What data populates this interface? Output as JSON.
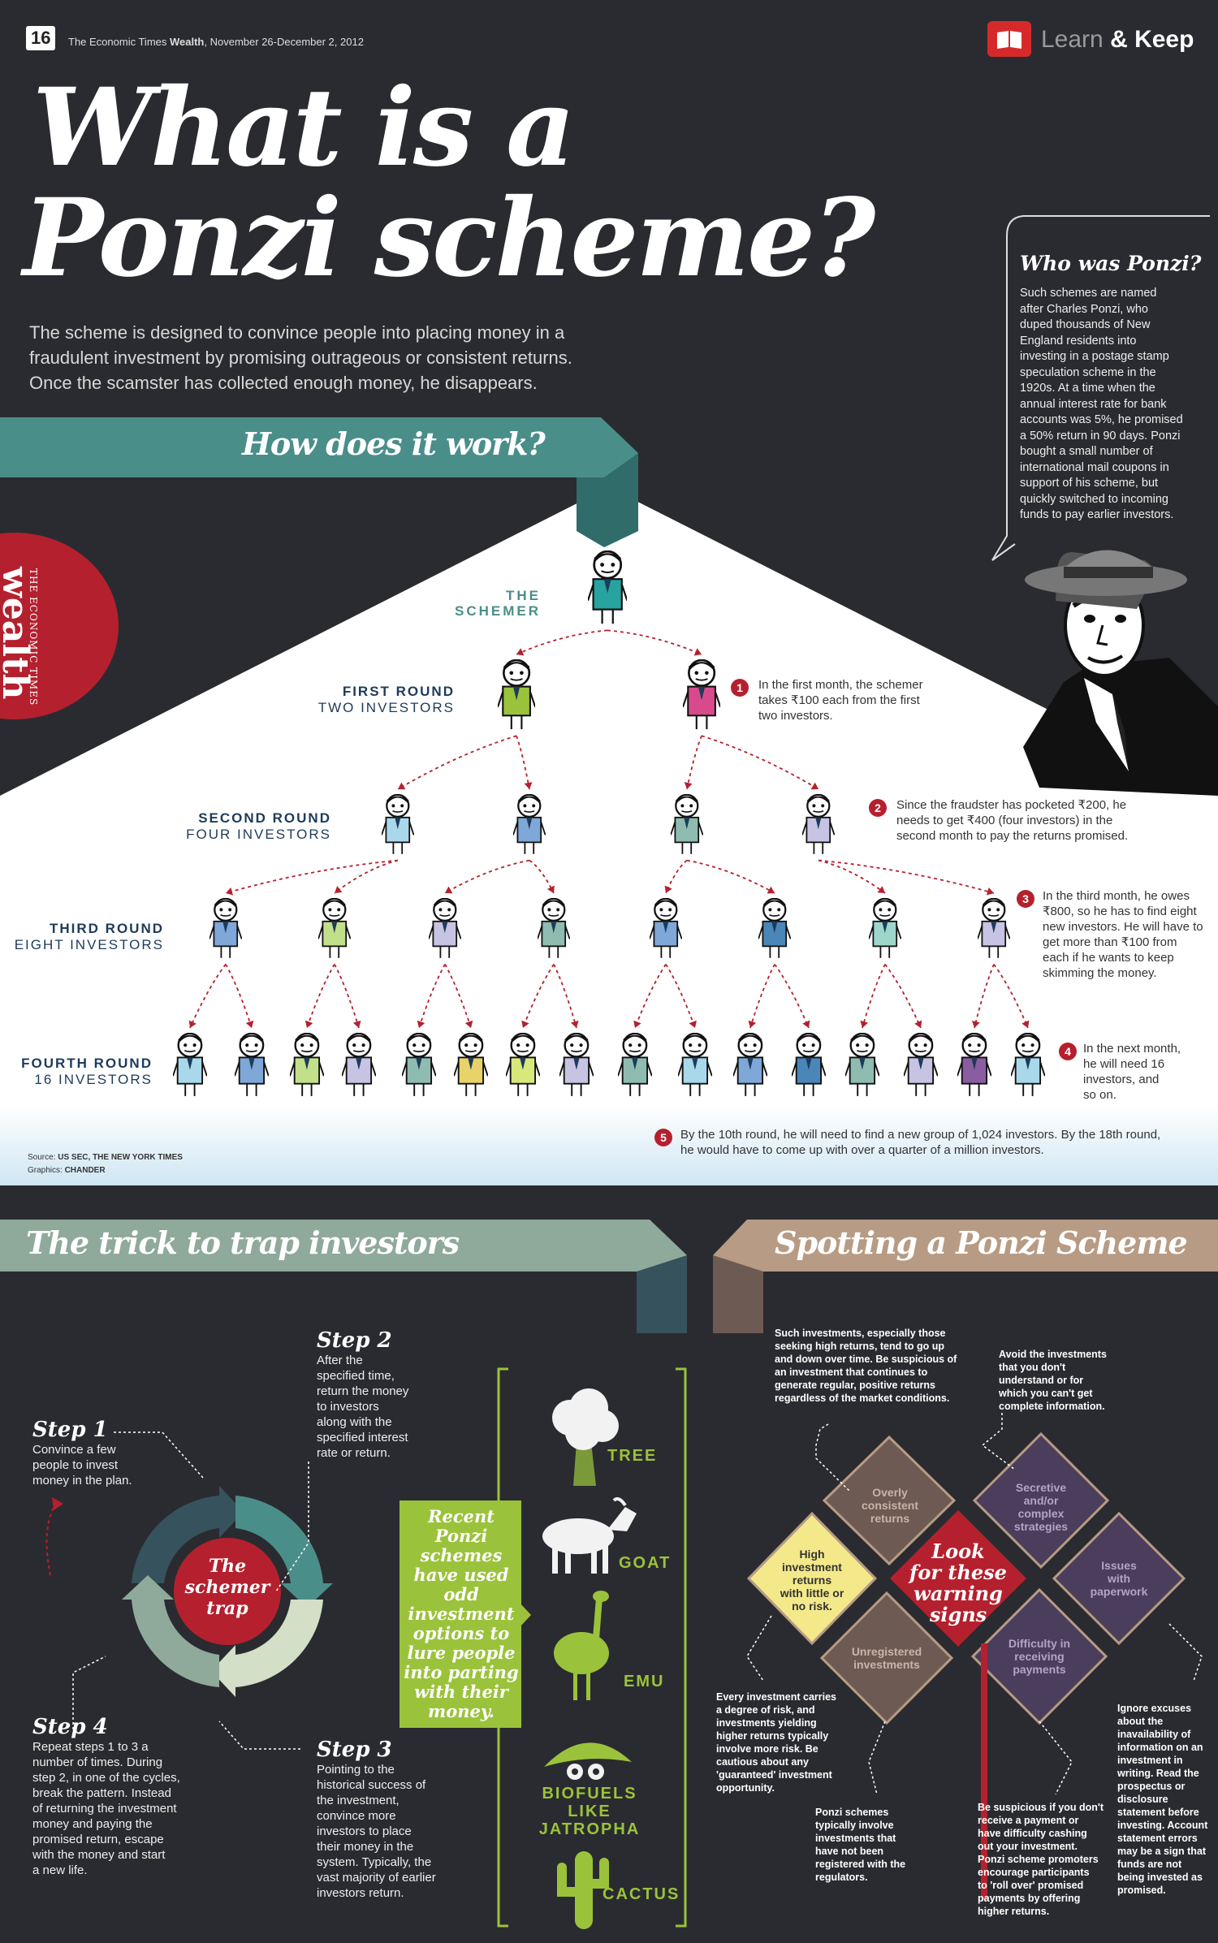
{
  "header": {
    "page_number": "16",
    "publication_prefix": "The Economic Times ",
    "publication_bold": "Wealth",
    "dates": ", November 26-December 2, 2012",
    "brand_learn": "Learn",
    "brand_keep": "& Keep"
  },
  "hero": {
    "title_line1": "What is a",
    "title_line2": "Ponzi scheme?",
    "intro_lines": [
      "The scheme is designed to convince people into placing money in a",
      "fraudulent investment by promising outrageous or consistent returns.",
      "Once the scamster has collected enough money, he disappears."
    ]
  },
  "who": {
    "title": "Who was Ponzi?",
    "lines": [
      "Such schemes are named",
      "after Charles Ponzi, who",
      "duped thousands of New",
      "England residents into",
      "investing in a postage stamp",
      "speculation scheme in the",
      "1920s. At a time when the",
      "annual interest rate for bank",
      "accounts was 5%, he promised",
      "a 50% return in 90 days. Ponzi",
      "bought a small number of",
      "international mail coupons in",
      "support of his scheme, but",
      "quickly switched to incoming",
      "funds to pay earlier investors."
    ]
  },
  "side_badge": {
    "small": "THE ECONOMIC TIMES",
    "big": "wealth"
  },
  "how": {
    "title": "How does it work?",
    "schemer_label": [
      "THE",
      "SCHEMER"
    ],
    "rounds": [
      {
        "title": "FIRST ROUND",
        "sub": "TWO INVESTORS"
      },
      {
        "title": "SECOND ROUND",
        "sub": "FOUR INVESTORS"
      },
      {
        "title": "THIRD ROUND",
        "sub": "EIGHT INVESTORS"
      },
      {
        "title": "FOURTH ROUND",
        "sub": "16 INVESTORS"
      }
    ],
    "notes": [
      {
        "num": "1",
        "lines": [
          "In the first month, the schemer",
          "takes ₹100 each from the first",
          "two investors."
        ]
      },
      {
        "num": "2",
        "lines": [
          "Since the fraudster has pocketed ₹200, he",
          "needs to get ₹400 (four investors) in the",
          "second month to pay the returns promised."
        ]
      },
      {
        "num": "3",
        "lines": [
          "In the third month, he owes",
          "₹800, so he has to find eight",
          "new investors. He will have to",
          "get more than ₹100 from",
          "each if he wants to keep",
          "skimming the money."
        ]
      },
      {
        "num": "4",
        "lines": [
          "In the next month,",
          "he will need 16",
          "investors, and",
          "so on."
        ]
      },
      {
        "num": "5",
        "lines": [
          "By the 10th round, he will need to find a new group of 1,024 investors. By the 18th round,",
          "he would have to come up with over a quarter of a million investors."
        ]
      }
    ],
    "source_label": "Source: ",
    "source_value": "US SEC, THE NEW YORK TIMES",
    "graphics_label": "Graphics: ",
    "graphics_value": "CHANDER"
  },
  "trick": {
    "title": "The trick to trap investors",
    "center": [
      "The",
      "schemer",
      "trap"
    ],
    "steps": [
      {
        "title": "Step 1",
        "lines": [
          "Convince a few",
          "people to invest",
          "money in the plan."
        ]
      },
      {
        "title": "Step 2",
        "lines": [
          "After the",
          "specified time,",
          "return the money",
          "to investors",
          "along with the",
          "specified interest",
          "rate or return."
        ]
      },
      {
        "title": "Step 3",
        "lines": [
          "Pointing to the",
          "historical success of",
          "the investment,",
          "convince more",
          "investors to place",
          "their money in the",
          "system. Typically, the",
          "vast majority of earlier",
          "investors return."
        ]
      },
      {
        "title": "Step 4",
        "lines": [
          "Repeat steps 1 to 3 a",
          "number of times. During",
          "step 2, in one of the cycles,",
          "break the pattern. Instead",
          "of returning the investment",
          "money and paying the",
          "promised return, escape",
          "with the money and start",
          "a new life."
        ]
      }
    ],
    "recent": [
      "Recent",
      "Ponzi",
      "schemes",
      "have used",
      "odd",
      "investment",
      "options to",
      "lure people",
      "into parting",
      "with their",
      "money."
    ],
    "items": [
      "TREE",
      "GOAT",
      "EMU",
      "BIOFUELS LIKE",
      "JATROPHA",
      "CACTUS"
    ]
  },
  "spot": {
    "title": "Spotting a Ponzi Scheme",
    "center": [
      "Look",
      "for these",
      "warning",
      "signs"
    ],
    "signs": {
      "overly": [
        "Overly",
        "consistent",
        "returns"
      ],
      "secretive": [
        "Secretive",
        "and/or",
        "complex",
        "strategies"
      ],
      "high": [
        "High",
        "investment",
        "returns",
        "with little or",
        "no risk."
      ],
      "issues": [
        "Issues",
        "with",
        "paperwork"
      ],
      "unregistered": [
        "Unregistered",
        "investments"
      ],
      "difficulty": [
        "Difficulty in",
        "receiving",
        "payments"
      ]
    },
    "notes": {
      "top_left": [
        "Such investments, especially those",
        "seeking high returns, tend to go up",
        "and down over time. Be suspicious of",
        "an investment that continues to",
        "generate regular, positive returns",
        "regardless of the market conditions."
      ],
      "top_right": [
        "Avoid the investments",
        "that you don't",
        "understand or for",
        "which you can't get",
        "complete information."
      ],
      "mid_left": [
        "Every investment carries",
        "a degree of risk, and",
        "investments yielding",
        "higher returns typically",
        "involve more risk. Be",
        "cautious about any",
        "'guaranteed' investment",
        "opportunity."
      ],
      "bottom_left": [
        "Ponzi schemes",
        "typically involve",
        "investments that",
        "have not been",
        "registered with the",
        "regulators."
      ],
      "bottom_mid": [
        "Be suspicious if you don't",
        "receive a payment or",
        "have difficulty cashing",
        "out your investment.",
        "Ponzi scheme promoters",
        "encourage participants",
        "to 'roll over' promised",
        "payments by offering",
        "higher returns."
      ],
      "bottom_right": [
        "Ignore excuses",
        "about the",
        "inavailability of",
        "information on an",
        "investment in",
        "writing. Read the",
        "prospectus or",
        "disclosure",
        "statement before",
        "investing. Account",
        "statement errors",
        "may be a sign that",
        "funds are not",
        "being invested as",
        "promised."
      ]
    }
  },
  "colors": {
    "background": "#2a2b30",
    "teal": "#4a8e8a",
    "sage": "#8fa99a",
    "tan": "#b79b84",
    "red": "#b5202e",
    "green": "#9bc23b",
    "navy": "#1e3b5a",
    "diamond_brown": "#6d5a53",
    "diamond_purple": "#4a3e5c",
    "diamond_yellow": "#f4e98a"
  }
}
